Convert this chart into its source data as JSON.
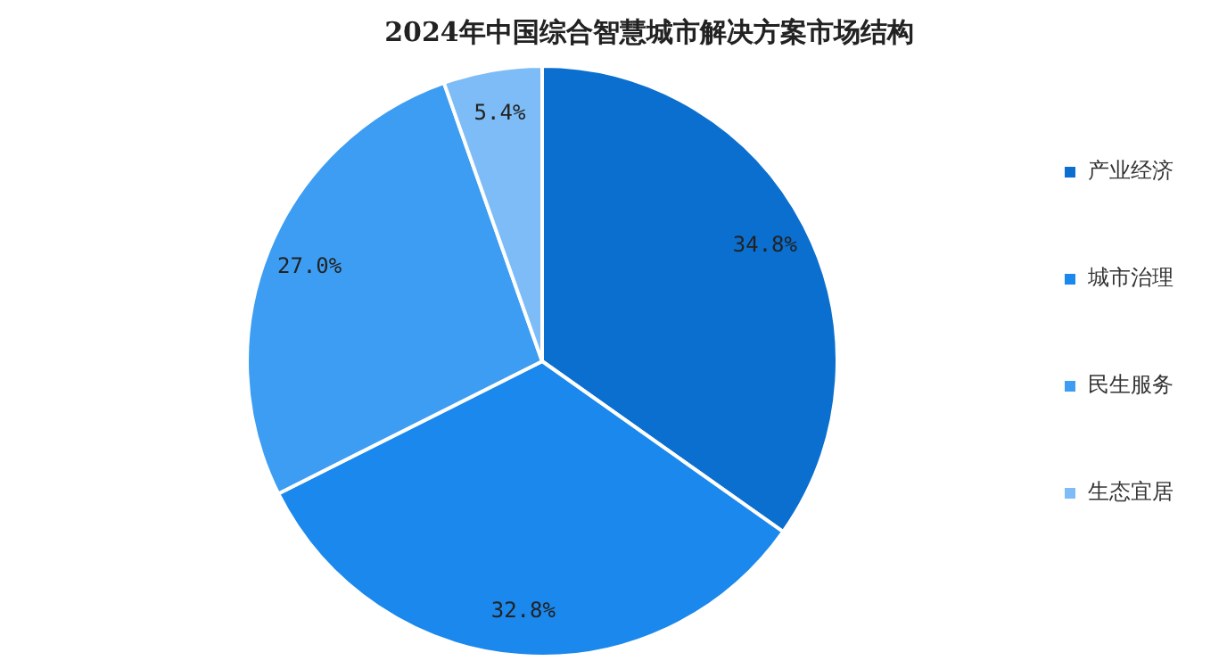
{
  "chart_data": {
    "type": "pie",
    "title": "2024年中国综合智慧城市解决方案市场结构",
    "categories": [
      "产业经济",
      "城市治理",
      "民生服务",
      "生态宜居"
    ],
    "values": [
      34.8,
      32.8,
      27.0,
      5.4
    ],
    "colors": [
      "#0b6fcf",
      "#1a88ec",
      "#3d9df2",
      "#7dbcf6"
    ],
    "value_labels": [
      "34.8%",
      "32.8%",
      "27.0%",
      "5.4%"
    ],
    "legend": "right"
  }
}
